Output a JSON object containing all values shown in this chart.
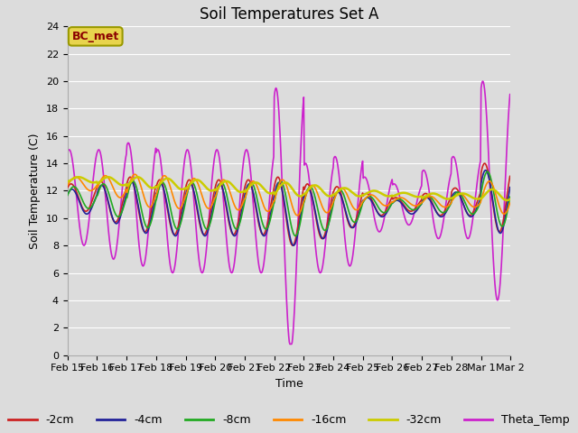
{
  "title": "Soil Temperatures Set A",
  "xlabel": "Time",
  "ylabel": "Soil Temperature (C)",
  "ylim": [
    0,
    24
  ],
  "background_color": "#dcdcdc",
  "plot_bg_color": "#dcdcdc",
  "annotation_text": "BC_met",
  "annotation_color": "#8B0000",
  "annotation_bg": "#e8d44d",
  "annotation_edge": "#999900",
  "lines": {
    "-2cm": {
      "color": "#cc2222",
      "lw": 1.2
    },
    "-4cm": {
      "color": "#222299",
      "lw": 1.2
    },
    "-8cm": {
      "color": "#22aa22",
      "lw": 1.2
    },
    "-16cm": {
      "color": "#ff8800",
      "lw": 1.2
    },
    "-32cm": {
      "color": "#cccc00",
      "lw": 1.8
    },
    "Theta_Temp": {
      "color": "#cc22cc",
      "lw": 1.2
    }
  },
  "xtick_labels": [
    "Feb 15",
    "Feb 16",
    "Feb 17",
    "Feb 18",
    "Feb 19",
    "Feb 20",
    "Feb 21",
    "Feb 22",
    "Feb 23",
    "Feb 24",
    "Feb 25",
    "Feb 26",
    "Feb 27",
    "Feb 28",
    "Mar 1",
    "Mar 2"
  ],
  "title_fontsize": 12,
  "label_fontsize": 9,
  "tick_fontsize": 8,
  "legend_fontsize": 9
}
